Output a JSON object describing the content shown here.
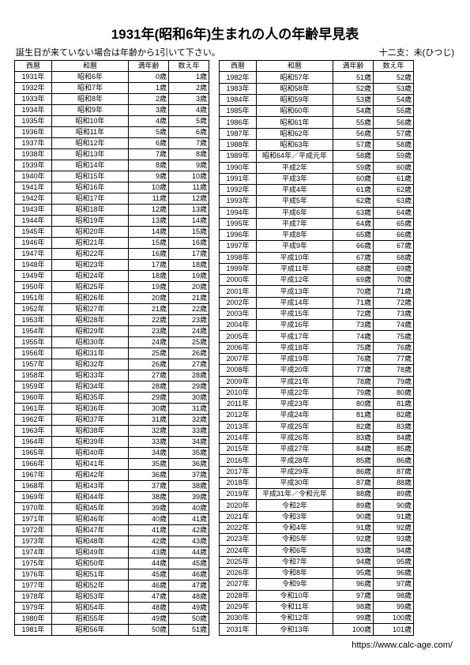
{
  "header": {
    "title": "1931年(昭和6年)生まれの人の年齢早見表",
    "note": "誕生日が来ていない場合は年齢から1引いて下さい。",
    "zodiac": "十二支：未(ひつじ)"
  },
  "columns": [
    "西暦",
    "和暦",
    "満年齢",
    "数え年"
  ],
  "footer": {
    "url": "https://www.calc-age.com/"
  },
  "birthYear": 1931,
  "endYear": 2031,
  "wareki": {
    "1931": "昭和6年",
    "1932": "昭和7年",
    "1933": "昭和8年",
    "1934": "昭和9年",
    "1935": "昭和10年",
    "1936": "昭和11年",
    "1937": "昭和12年",
    "1938": "昭和13年",
    "1939": "昭和14年",
    "1940": "昭和15年",
    "1941": "昭和16年",
    "1942": "昭和17年",
    "1943": "昭和18年",
    "1944": "昭和19年",
    "1945": "昭和20年",
    "1946": "昭和21年",
    "1947": "昭和22年",
    "1948": "昭和23年",
    "1949": "昭和24年",
    "1950": "昭和25年",
    "1951": "昭和26年",
    "1952": "昭和27年",
    "1953": "昭和28年",
    "1954": "昭和29年",
    "1955": "昭和30年",
    "1956": "昭和31年",
    "1957": "昭和32年",
    "1958": "昭和33年",
    "1959": "昭和34年",
    "1960": "昭和35年",
    "1961": "昭和36年",
    "1962": "昭和37年",
    "1963": "昭和38年",
    "1964": "昭和39年",
    "1965": "昭和40年",
    "1966": "昭和41年",
    "1967": "昭和42年",
    "1968": "昭和43年",
    "1969": "昭和44年",
    "1970": "昭和45年",
    "1971": "昭和46年",
    "1972": "昭和47年",
    "1973": "昭和48年",
    "1974": "昭和49年",
    "1975": "昭和50年",
    "1976": "昭和51年",
    "1977": "昭和52年",
    "1978": "昭和53年",
    "1979": "昭和54年",
    "1980": "昭和55年",
    "1981": "昭和56年",
    "1982": "昭和57年",
    "1983": "昭和58年",
    "1984": "昭和59年",
    "1985": "昭和60年",
    "1986": "昭和61年",
    "1987": "昭和62年",
    "1988": "昭和63年",
    "1989": "昭和64年／平成元年",
    "1990": "平成2年",
    "1991": "平成3年",
    "1992": "平成4年",
    "1993": "平成5年",
    "1994": "平成6年",
    "1995": "平成7年",
    "1996": "平成8年",
    "1997": "平成9年",
    "1998": "平成10年",
    "1999": "平成11年",
    "2000": "平成12年",
    "2001": "平成13年",
    "2002": "平成14年",
    "2003": "平成15年",
    "2004": "平成16年",
    "2005": "平成17年",
    "2006": "平成18年",
    "2007": "平成19年",
    "2008": "平成20年",
    "2009": "平成21年",
    "2010": "平成22年",
    "2011": "平成23年",
    "2012": "平成24年",
    "2013": "平成25年",
    "2014": "平成26年",
    "2015": "平成27年",
    "2016": "平成28年",
    "2017": "平成29年",
    "2018": "平成30年",
    "2019": "平成31年／令和元年",
    "2020": "令和2年",
    "2021": "令和3年",
    "2022": "令和4年",
    "2023": "令和5年",
    "2024": "令和6年",
    "2025": "令和7年",
    "2026": "令和8年",
    "2027": "令和9年",
    "2028": "令和10年",
    "2029": "令和11年",
    "2030": "令和12年",
    "2031": "令和13年"
  },
  "splitAt": 51
}
